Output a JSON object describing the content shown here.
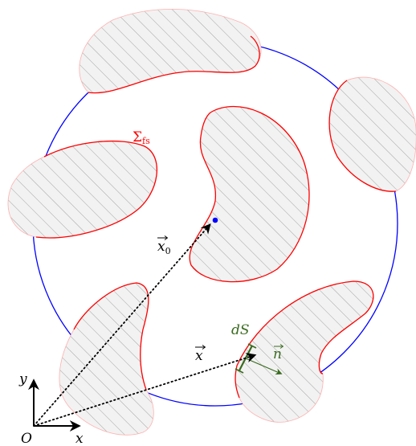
{
  "labels": {
    "surface": "Σ",
    "surface_sub": "fs",
    "x0": "x",
    "x0_sub": "0",
    "x": "x",
    "n": "n",
    "dS": "dS",
    "axis_y": "y",
    "axis_x": "x",
    "origin": "O"
  },
  "colors": {
    "boundary_circle": "#0000ff",
    "fluid_surface": "#ff0000",
    "solid_fill": "#f2f2f2",
    "hatch": "#9a9a9a",
    "point": "#0000ff",
    "surface_element": "#3a6b1f",
    "vectors": "#000000"
  }
}
